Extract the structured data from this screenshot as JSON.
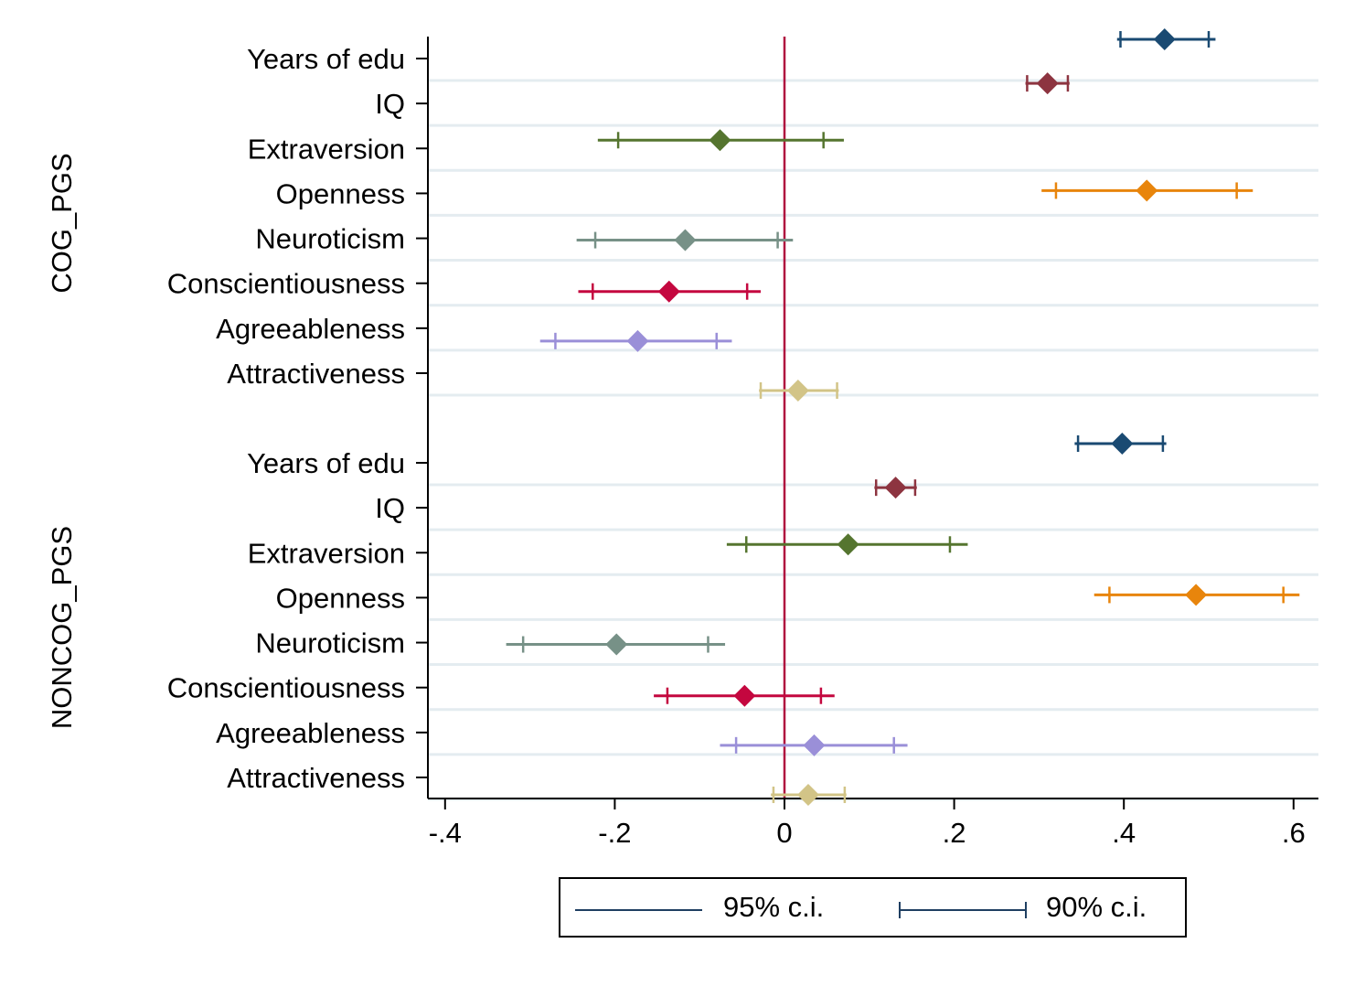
{
  "chart_data": {
    "type": "coefficient_plot",
    "xlim": [
      -0.42,
      0.63
    ],
    "x_ticks": [
      {
        "value": -0.4,
        "label": "-.4"
      },
      {
        "value": -0.2,
        "label": "-.2"
      },
      {
        "value": 0,
        "label": "0"
      },
      {
        "value": 0.2,
        "label": ".2"
      },
      {
        "value": 0.4,
        "label": ".4"
      },
      {
        "value": 0.6,
        "label": ".6"
      }
    ],
    "reference_line": 0,
    "reference_color": "#b0113f",
    "grid": true,
    "legend_position": "bottom",
    "legend": [
      {
        "name": "95% c.i.",
        "style": "plain"
      },
      {
        "name": "90% c.i.",
        "style": "capped"
      }
    ],
    "groups": [
      {
        "name": "COG_PGS",
        "rows": [
          {
            "label": "Years of edu",
            "estimate": 0.448,
            "ci95": [
              0.392,
              0.508
            ],
            "ci90": [
              0.396,
              0.5
            ],
            "color": "#1a4a72"
          },
          {
            "label": "IQ",
            "estimate": 0.31,
            "ci95": [
              0.284,
              0.336
            ],
            "ci90": [
              0.286,
              0.334
            ],
            "color": "#8d3440"
          },
          {
            "label": "Extraversion",
            "estimate": -0.076,
            "ci95": [
              -0.22,
              0.07
            ],
            "ci90": [
              -0.196,
              0.046
            ],
            "color": "#55752f"
          },
          {
            "label": "Openness",
            "estimate": 0.427,
            "ci95": [
              0.303,
              0.552
            ],
            "ci90": [
              0.32,
              0.533
            ],
            "color": "#e8850c"
          },
          {
            "label": "Neuroticism",
            "estimate": -0.117,
            "ci95": [
              -0.245,
              0.01
            ],
            "ci90": [
              -0.223,
              -0.008
            ],
            "color": "#779187"
          },
          {
            "label": "Conscientiousness",
            "estimate": -0.136,
            "ci95": [
              -0.243,
              -0.028
            ],
            "ci90": [
              -0.226,
              -0.044
            ],
            "color": "#c4073f"
          },
          {
            "label": "Agreeableness",
            "estimate": -0.173,
            "ci95": [
              -0.288,
              -0.062
            ],
            "ci90": [
              -0.27,
              -0.08
            ],
            "color": "#9a8fd8"
          },
          {
            "label": "Attractiveness",
            "estimate": 0.016,
            "ci95": [
              -0.03,
              0.064
            ],
            "ci90": [
              -0.028,
              0.062
            ],
            "color": "#d2c487"
          }
        ]
      },
      {
        "name": "NONCOG_PGS",
        "rows": [
          {
            "label": "Years of edu",
            "estimate": 0.398,
            "ci95": [
              0.342,
              0.45
            ],
            "ci90": [
              0.346,
              0.446
            ],
            "color": "#1a4a72"
          },
          {
            "label": "IQ",
            "estimate": 0.131,
            "ci95": [
              0.106,
              0.156
            ],
            "ci90": [
              0.108,
              0.154
            ],
            "color": "#8d3440"
          },
          {
            "label": "Extraversion",
            "estimate": 0.075,
            "ci95": [
              -0.068,
              0.216
            ],
            "ci90": [
              -0.045,
              0.195
            ],
            "color": "#55752f"
          },
          {
            "label": "Openness",
            "estimate": 0.485,
            "ci95": [
              0.365,
              0.607
            ],
            "ci90": [
              0.383,
              0.588
            ],
            "color": "#e8850c"
          },
          {
            "label": "Neuroticism",
            "estimate": -0.198,
            "ci95": [
              -0.328,
              -0.07
            ],
            "ci90": [
              -0.308,
              -0.09
            ],
            "color": "#779187"
          },
          {
            "label": "Conscientiousness",
            "estimate": -0.047,
            "ci95": [
              -0.154,
              0.059
            ],
            "ci90": [
              -0.138,
              0.043
            ],
            "color": "#c4073f"
          },
          {
            "label": "Agreeableness",
            "estimate": 0.035,
            "ci95": [
              -0.076,
              0.145
            ],
            "ci90": [
              -0.057,
              0.129
            ],
            "color": "#9a8fd8"
          },
          {
            "label": "Attractiveness",
            "estimate": 0.028,
            "ci95": [
              -0.016,
              0.073
            ],
            "ci90": [
              -0.013,
              0.071
            ],
            "color": "#d2c487"
          }
        ]
      }
    ]
  }
}
